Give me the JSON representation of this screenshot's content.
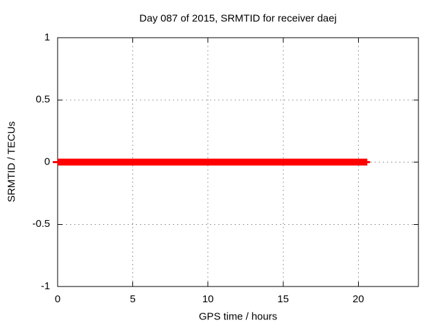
{
  "chart_data": {
    "type": "line",
    "title": "Day 087 of 2015, SRMTID for receiver daej",
    "xlabel": "GPS time / hours",
    "ylabel": "SRMTID / TECUs",
    "xlim": [
      0,
      24
    ],
    "ylim": [
      -1,
      1
    ],
    "xticks": [
      0,
      5,
      10,
      15,
      20
    ],
    "yticks": [
      -1,
      -0.5,
      0,
      0.5,
      1
    ],
    "grid": true,
    "legend": "none",
    "series": [
      {
        "name": "SRMTID",
        "color": "#ff0000",
        "linewidth": 10,
        "x": [
          0,
          20.6
        ],
        "y": [
          0,
          0
        ]
      }
    ],
    "colors": {
      "background": "#ffffff",
      "grid": "#9c9c9c",
      "axis": "#000000",
      "text": "#000000"
    }
  }
}
